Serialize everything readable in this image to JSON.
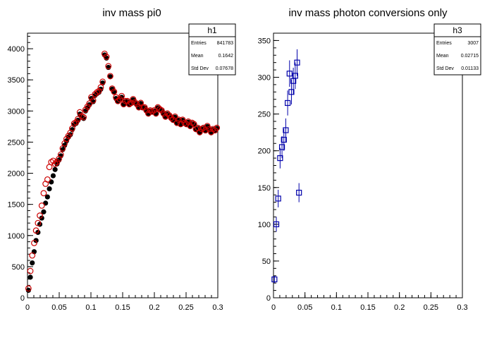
{
  "colors": {
    "series_black": "#000000",
    "series_red": "#cc0000",
    "series_blue": "#0000aa",
    "frame": "#000000"
  },
  "chart_data": [
    {
      "type": "scatter",
      "title": "inv mass pi0",
      "xlabel": "",
      "ylabel": "",
      "xlim": [
        0,
        0.3
      ],
      "ylim": [
        0,
        4250
      ],
      "xticks": [
        0,
        0.05,
        0.1,
        0.15,
        0.2,
        0.25,
        0.3
      ],
      "xtick_labels": [
        "0",
        "0.05",
        "0.1",
        "0.15",
        "0.2",
        "0.25",
        "0.3"
      ],
      "yticks": [
        0,
        500,
        1000,
        1500,
        2000,
        2500,
        3000,
        3500,
        4000
      ],
      "ytick_labels": [
        "0",
        "500",
        "1000",
        "1500",
        "2000",
        "2500",
        "3000",
        "3500",
        "4000"
      ],
      "stats": {
        "name": "h1",
        "rows": [
          [
            "Entries",
            "841783"
          ],
          [
            "Mean",
            "0.1642"
          ],
          [
            "Std Dev",
            "0.07678"
          ]
        ]
      },
      "series": [
        {
          "marker": "filled-circle",
          "color": "#000000",
          "x": [
            0.0015,
            0.0045,
            0.0075,
            0.0105,
            0.0135,
            0.0165,
            0.0195,
            0.0225,
            0.0255,
            0.0285,
            0.0315,
            0.0345,
            0.0375,
            0.0405,
            0.0435,
            0.0465,
            0.0495,
            0.0525,
            0.0555,
            0.0585,
            0.0615,
            0.0645,
            0.0675,
            0.0705,
            0.0735,
            0.0765,
            0.0795,
            0.0825,
            0.0855,
            0.0885,
            0.0915,
            0.0945,
            0.0975,
            0.1005,
            0.1035,
            0.1065,
            0.1095,
            0.1125,
            0.1155,
            0.1185,
            0.1215,
            0.1245,
            0.1275,
            0.1305,
            0.1335,
            0.1365,
            0.1395,
            0.1425,
            0.1455,
            0.1485,
            0.1515,
            0.1545,
            0.1575,
            0.1605,
            0.1635,
            0.1665,
            0.1695,
            0.1725,
            0.1755,
            0.1785,
            0.1815,
            0.1845,
            0.1875,
            0.1905,
            0.1935,
            0.1965,
            0.1995,
            0.2025,
            0.2055,
            0.2085,
            0.2115,
            0.2145,
            0.2175,
            0.2205,
            0.2235,
            0.2265,
            0.2295,
            0.2325,
            0.2355,
            0.2385,
            0.2415,
            0.2445,
            0.2475,
            0.2505,
            0.2535,
            0.2565,
            0.2595,
            0.2625,
            0.2655,
            0.2685,
            0.2715,
            0.2745,
            0.2775,
            0.2805,
            0.2835,
            0.2865,
            0.2895,
            0.2925,
            0.2955,
            0.2985
          ],
          "y": [
            120,
            330,
            560,
            740,
            920,
            1050,
            1180,
            1280,
            1380,
            1520,
            1620,
            1750,
            1860,
            1960,
            2060,
            2150,
            2210,
            2280,
            2380,
            2450,
            2520,
            2580,
            2620,
            2700,
            2780,
            2800,
            2850,
            2950,
            2900,
            2880,
            3000,
            3050,
            3100,
            3200,
            3150,
            3250,
            3280,
            3300,
            3350,
            3450,
            3900,
            3850,
            3700,
            3550,
            3350,
            3300,
            3200,
            3150,
            3180,
            3220,
            3100,
            3150,
            3150,
            3100,
            3120,
            3180,
            3130,
            3100,
            3050,
            3120,
            3050,
            3050,
            3000,
            2950,
            3000,
            2980,
            3000,
            2950,
            3050,
            3020,
            3000,
            2950,
            2900,
            2950,
            2920,
            2880,
            2850,
            2900,
            2800,
            2850,
            2780,
            2850,
            2800,
            2780,
            2820,
            2750,
            2800,
            2780,
            2700,
            2720,
            2650,
            2700,
            2720,
            2680,
            2750,
            2700,
            2650,
            2700,
            2680,
            2720
          ]
        },
        {
          "marker": "open-circle",
          "color": "#cc0000",
          "x": [
            0.0015,
            0.0045,
            0.0075,
            0.0105,
            0.0135,
            0.0165,
            0.0195,
            0.0225,
            0.0255,
            0.0285,
            0.0315,
            0.0345,
            0.0375,
            0.0405,
            0.0435,
            0.0465,
            0.0495,
            0.0525,
            0.0555,
            0.0585,
            0.0615,
            0.0645,
            0.0675,
            0.0705,
            0.0735,
            0.0765,
            0.0795,
            0.0825,
            0.0855,
            0.0885,
            0.0915,
            0.0945,
            0.0975,
            0.1005,
            0.1035,
            0.1065,
            0.1095,
            0.1125,
            0.1155,
            0.1185,
            0.1215,
            0.1245,
            0.1275,
            0.1305,
            0.1335,
            0.1365,
            0.1395,
            0.1425,
            0.1455,
            0.1485,
            0.1515,
            0.1545,
            0.1575,
            0.1605,
            0.1635,
            0.1665,
            0.1695,
            0.1725,
            0.1755,
            0.1785,
            0.1815,
            0.1845,
            0.1875,
            0.1905,
            0.1935,
            0.1965,
            0.1995,
            0.2025,
            0.2055,
            0.2085,
            0.2115,
            0.2145,
            0.2175,
            0.2205,
            0.2235,
            0.2265,
            0.2295,
            0.2325,
            0.2355,
            0.2385,
            0.2415,
            0.2445,
            0.2475,
            0.2505,
            0.2535,
            0.2565,
            0.2595,
            0.2625,
            0.2655,
            0.2685,
            0.2715,
            0.2745,
            0.2775,
            0.2805,
            0.2835,
            0.2865,
            0.2895,
            0.2925,
            0.2955,
            0.2985
          ],
          "y": [
            150,
            430,
            680,
            880,
            1080,
            1200,
            1320,
            1480,
            1680,
            1830,
            1900,
            2100,
            2180,
            2200,
            2150,
            2180,
            2230,
            2300,
            2400,
            2480,
            2550,
            2600,
            2650,
            2720,
            2800,
            2820,
            2870,
            2980,
            2920,
            2900,
            3020,
            3070,
            3120,
            3220,
            3170,
            3270,
            3300,
            3320,
            3380,
            3470,
            3920,
            3870,
            3720,
            3560,
            3360,
            3310,
            3220,
            3160,
            3190,
            3240,
            3110,
            3160,
            3160,
            3110,
            3130,
            3190,
            3140,
            3110,
            3060,
            3130,
            3060,
            3060,
            3010,
            2960,
            3010,
            2990,
            3010,
            2960,
            3060,
            3030,
            3010,
            2960,
            2910,
            2960,
            2930,
            2890,
            2860,
            2910,
            2810,
            2860,
            2790,
            2860,
            2810,
            2790,
            2830,
            2760,
            2810,
            2790,
            2710,
            2730,
            2660,
            2710,
            2730,
            2690,
            2760,
            2710,
            2660,
            2710,
            2690,
            2730
          ]
        }
      ]
    },
    {
      "type": "scatter",
      "title": "inv mass photon conversions only",
      "xlabel": "",
      "ylabel": "",
      "xlim": [
        0,
        0.3
      ],
      "ylim": [
        0,
        360
      ],
      "xticks": [
        0,
        0.05,
        0.1,
        0.15,
        0.2,
        0.25,
        0.3
      ],
      "xtick_labels": [
        "0",
        "0.05",
        "0.1",
        "0.15",
        "0.2",
        "0.25",
        "0.3"
      ],
      "yticks": [
        0,
        50,
        100,
        150,
        200,
        250,
        300,
        350
      ],
      "ytick_labels": [
        "0",
        "50",
        "100",
        "150",
        "200",
        "250",
        "300",
        "350"
      ],
      "stats": {
        "name": "h3",
        "rows": [
          [
            "Entries",
            "3007"
          ],
          [
            "Mean",
            "0.02715"
          ],
          [
            "Std Dev",
            "0.01133"
          ]
        ]
      },
      "series": [
        {
          "marker": "open-square",
          "color": "#0000aa",
          "x": [
            0.0015,
            0.0045,
            0.0075,
            0.0105,
            0.0135,
            0.0165,
            0.0195,
            0.0225,
            0.0255,
            0.0285,
            0.0315,
            0.0345,
            0.0375,
            0.0405,
            0.0435,
            0.0465
          ],
          "y": [
            25,
            100,
            135,
            190,
            205,
            215,
            228,
            265,
            305,
            280,
            295,
            302,
            320,
            143,
            0,
            0
          ],
          "err": [
            5,
            10,
            12,
            14,
            15,
            15,
            16,
            17,
            18,
            17,
            18,
            18,
            18,
            13,
            0,
            0
          ]
        }
      ]
    }
  ]
}
